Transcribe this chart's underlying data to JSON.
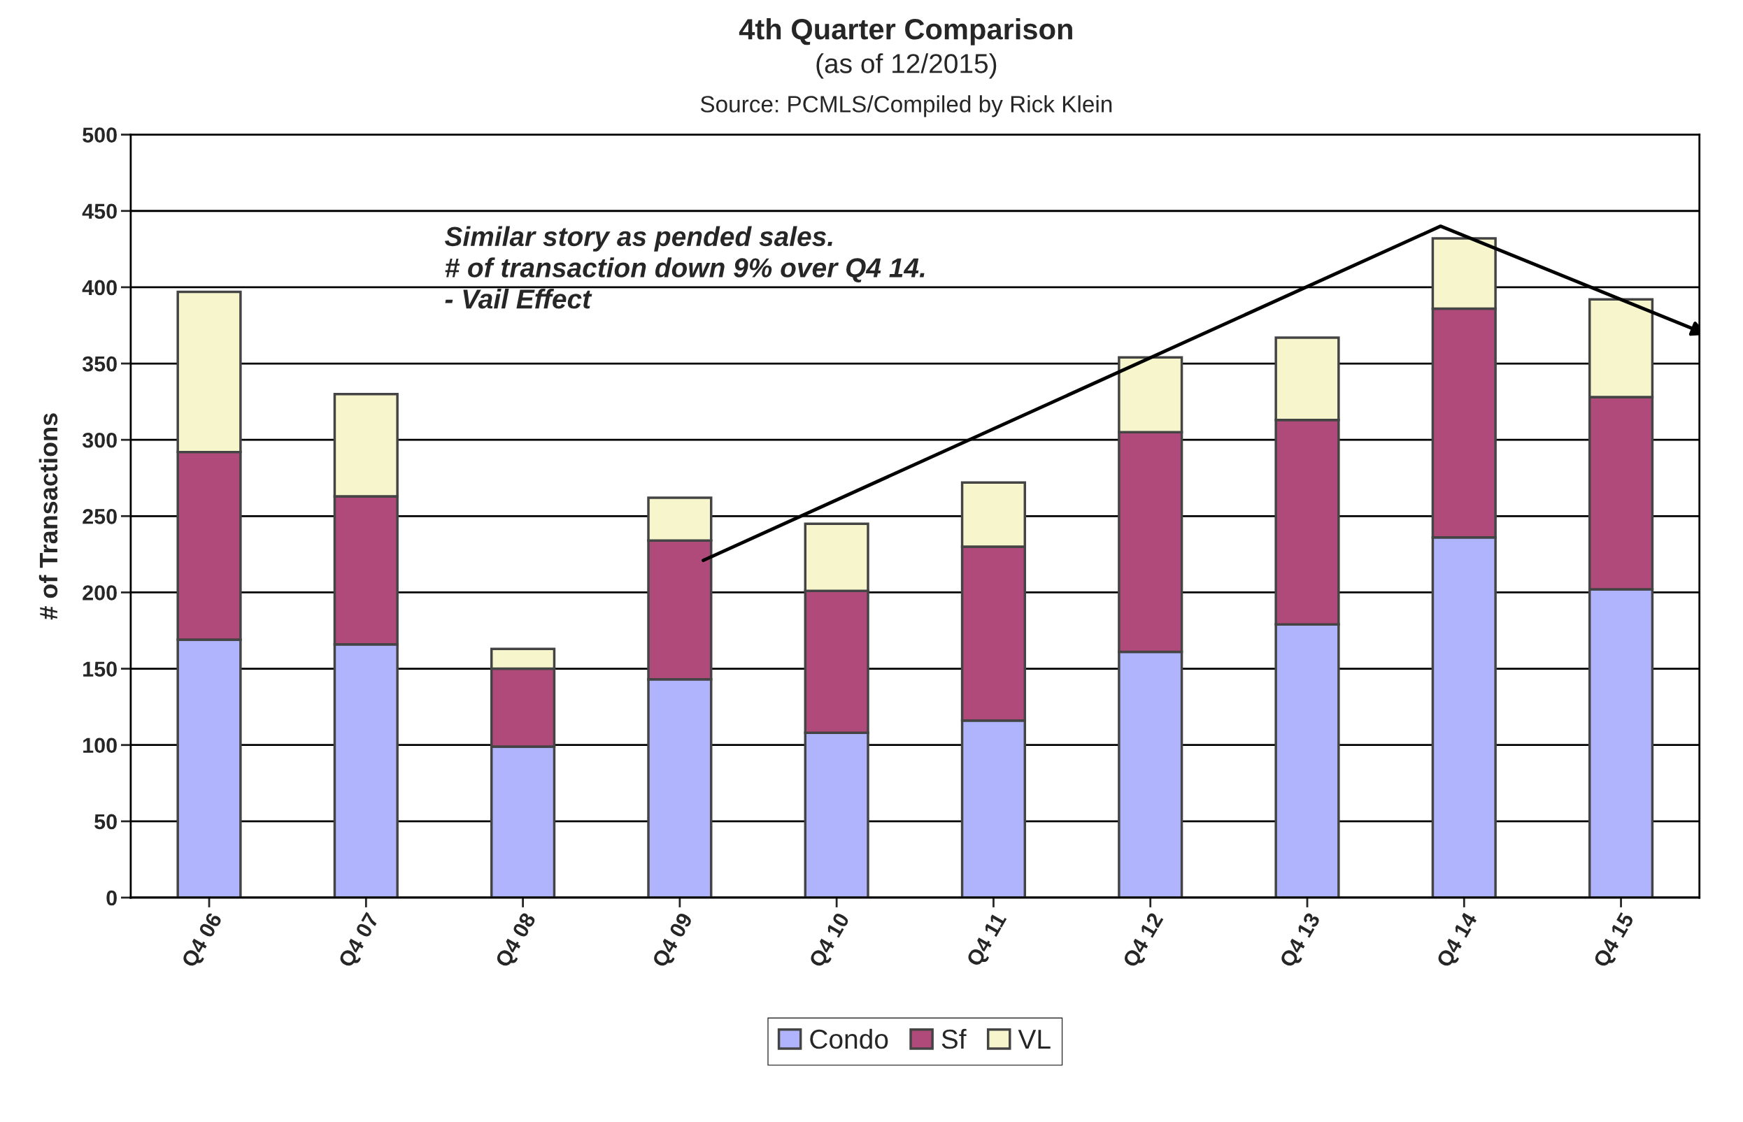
{
  "chart_data": {
    "type": "bar",
    "title": "4th Quarter Comparison",
    "subtitle": "(as of 12/2015)",
    "ylabel": "# of Transactions",
    "annotations": [
      "Source: PCMLS/Compiled by Rick Klein",
      "Similar story as pended sales.\n# of transaction down 9% over Q4 14.\n- Vail Effect"
    ],
    "categories": [
      "Q4 06",
      "Q4 07",
      "Q4 08",
      "Q4 09",
      "Q4 10",
      "Q4 11",
      "Q4 12",
      "Q4 13",
      "Q4 14",
      "Q4 15"
    ],
    "stacked": true,
    "series": [
      {
        "name": "Condo",
        "color": "#b0b4fc",
        "values": [
          169,
          166,
          99,
          143,
          108,
          116,
          161,
          179,
          236,
          202
        ]
      },
      {
        "name": "Sf",
        "color": "#b04a7a",
        "values": [
          123,
          97,
          51,
          91,
          93,
          114,
          144,
          134,
          150,
          126
        ]
      },
      {
        "name": "VL",
        "color": "#f7f5cc",
        "values": [
          105,
          67,
          13,
          28,
          44,
          42,
          49,
          54,
          46,
          64
        ]
      }
    ],
    "ylim": [
      0,
      500
    ],
    "yticks": [
      0,
      50,
      100,
      150,
      200,
      250,
      300,
      350,
      400,
      450,
      500
    ],
    "grid": "y",
    "legend": "bottom"
  }
}
